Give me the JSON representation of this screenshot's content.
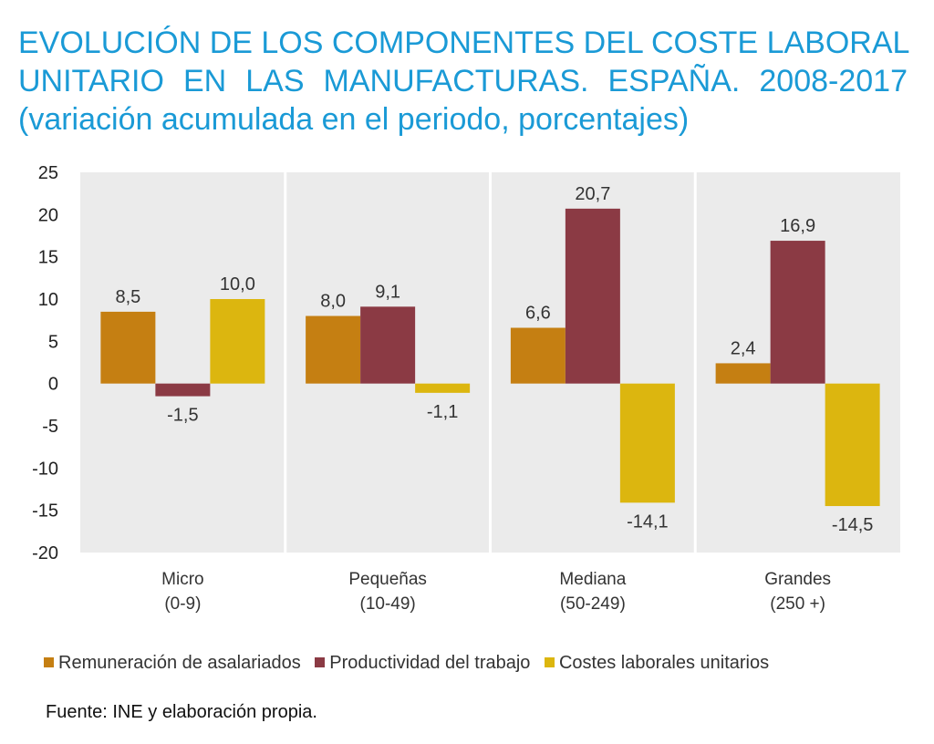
{
  "title_lines": [
    "EVOLUCIÓN DE LOS COMPONENTES DEL COSTE LABORAL",
    "UNITARIO EN LAS MANUFACTURAS. ESPAÑA. 2008-2017",
    "(variación acumulada en el periodo, porcentajes)"
  ],
  "source": "Fuente: INE y elaboración propia.",
  "colors": {
    "plot_background": "#ebebeb",
    "separator": "#ffffff",
    "title": "#1a9ad6"
  },
  "chart_data": {
    "type": "bar",
    "categories": [
      [
        "Micro",
        "(0-9)"
      ],
      [
        "Pequeñas",
        "(10-49)"
      ],
      [
        "Mediana",
        "(50-249)"
      ],
      [
        "Grandes",
        "(250 +)"
      ]
    ],
    "series": [
      {
        "name": "Remuneración de asalariados",
        "color": "#c57f12",
        "values": [
          8.5,
          8.0,
          6.6,
          2.4
        ],
        "labels": [
          "8,5",
          "8,0",
          "6,6",
          "2,4"
        ]
      },
      {
        "name": "Productividad del trabajo",
        "color": "#8b3a44",
        "values": [
          -1.5,
          9.1,
          20.7,
          16.9
        ],
        "labels": [
          "-1,5",
          "9,1",
          "20,7",
          "16,9"
        ]
      },
      {
        "name": "Costes laborales unitarios",
        "color": "#dcb60f",
        "values": [
          10.0,
          -1.1,
          -14.1,
          -14.5
        ],
        "labels": [
          "10,0",
          "-1,1",
          "-14,1",
          "-14,5"
        ]
      }
    ],
    "ylim": [
      -20,
      25
    ],
    "yticks": [
      "25",
      "20",
      "15",
      "10",
      "5",
      "0",
      "-5",
      "-10",
      "-15",
      "-20"
    ],
    "ytick_values": [
      25,
      20,
      15,
      10,
      5,
      0,
      -5,
      -10,
      -15,
      -20
    ],
    "legend_position": "bottom",
    "grid": false
  }
}
